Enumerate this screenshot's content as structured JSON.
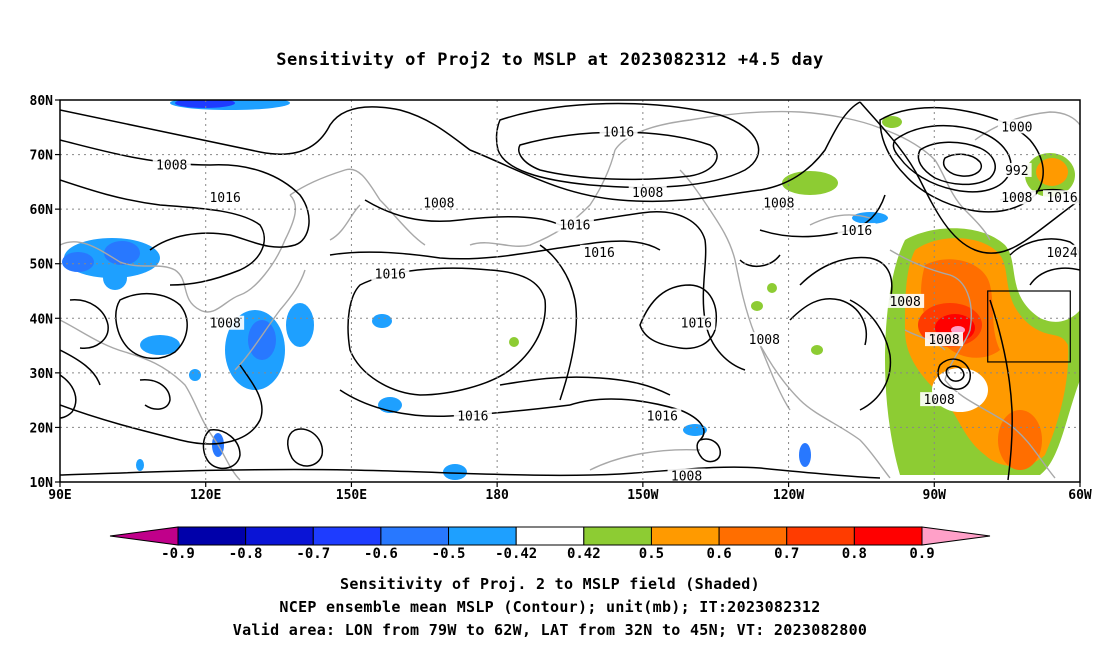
{
  "title": "Sensitivity of Proj2 to MSLP at 2023082312 +4.5 day",
  "captions": [
    "Sensitivity of Proj. 2 to MSLP field (Shaded)",
    "NCEP ensemble mean MSLP (Contour); unit(mb); IT:2023082312",
    "Valid area: LON from 79W to 62W, LAT from 32N to 45N; VT: 2023082800"
  ],
  "map": {
    "lon_range": [
      90,
      300
    ],
    "lat_range": [
      10,
      80
    ],
    "lat_labels": [
      "80N",
      "70N",
      "60N",
      "50N",
      "40N",
      "30N",
      "20N",
      "10N"
    ],
    "lat_values": [
      80,
      70,
      60,
      50,
      40,
      30,
      20,
      10
    ],
    "lon_labels": [
      "90E",
      "120E",
      "150E",
      "180",
      "150W",
      "120W",
      "90W",
      "60W"
    ],
    "lon_values": [
      90,
      120,
      150,
      180,
      210,
      240,
      270,
      300
    ],
    "valid_area": {
      "lon": [
        281,
        298
      ],
      "lat": [
        32,
        45
      ]
    },
    "contour_labels": [
      {
        "text": "1016",
        "lon": 205,
        "lat": 74
      },
      {
        "text": "1008",
        "lon": 113,
        "lat": 68
      },
      {
        "text": "1008",
        "lon": 211,
        "lat": 63
      },
      {
        "text": "1008",
        "lon": 168,
        "lat": 61
      },
      {
        "text": "1016",
        "lon": 124,
        "lat": 62
      },
      {
        "text": "1008",
        "lon": 238,
        "lat": 61
      },
      {
        "text": "1016",
        "lon": 196,
        "lat": 57
      },
      {
        "text": "1016",
        "lon": 201,
        "lat": 52
      },
      {
        "text": "1016",
        "lon": 158,
        "lat": 48
      },
      {
        "text": "1008",
        "lon": 124,
        "lat": 39
      },
      {
        "text": "1016",
        "lon": 221,
        "lat": 39
      },
      {
        "text": "1008",
        "lon": 235,
        "lat": 36
      },
      {
        "text": "1016",
        "lon": 175,
        "lat": 22
      },
      {
        "text": "1016",
        "lon": 214,
        "lat": 22
      },
      {
        "text": "1008",
        "lon": 219,
        "lat": 11
      },
      {
        "text": "1016",
        "lon": 254,
        "lat": 56
      },
      {
        "text": "1008",
        "lon": 264,
        "lat": 43
      },
      {
        "text": "1008",
        "lon": 272,
        "lat": 36
      },
      {
        "text": "1008",
        "lon": 271,
        "lat": 25
      },
      {
        "text": "1000",
        "lon": 287,
        "lat": 75
      },
      {
        "text": "992",
        "lon": 287,
        "lat": 67
      },
      {
        "text": "1008",
        "lon": 287,
        "lat": 62
      },
      {
        "text": "1016",
        "lon": 298,
        "lat": 62
      },
      {
        "text": "1024",
        "lon": 302,
        "lat": 52
      }
    ]
  },
  "colorbar": {
    "labels": [
      "-0.9",
      "-0.8",
      "-0.7",
      "-0.6",
      "-0.5",
      "-0.42",
      "0.42",
      "0.5",
      "0.6",
      "0.7",
      "0.8",
      "0.9"
    ],
    "colors": [
      "#0000aa",
      "#0a14d6",
      "#1e3cff",
      "#2878ff",
      "#1ea0ff",
      "#ffffff",
      "#8dcc33",
      "#ff9a00",
      "#ff6e00",
      "#ff3c00",
      "#ff0000"
    ],
    "low_end_color": "#c0008a",
    "high_end_color": "#ffa0c8"
  }
}
